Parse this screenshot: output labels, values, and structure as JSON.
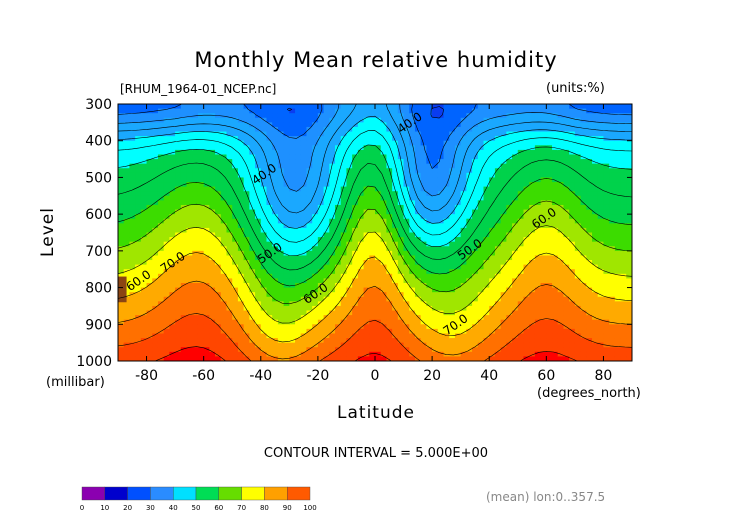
{
  "chart_data": {
    "type": "heatmap",
    "title": "Monthly Mean relative humidity",
    "subtitle_left": "[RHUM_1964-01_NCEP.nc]",
    "subtitle_right": "(units:%)",
    "xlabel": "Latitude",
    "xunits": "(degrees_north)",
    "ylabel": "Level",
    "yunits": "(millibar)",
    "xlim": [
      -90,
      90
    ],
    "ylim": [
      1000,
      300
    ],
    "x_ticks": [
      -80,
      -60,
      -40,
      -20,
      0,
      20,
      40,
      60,
      80
    ],
    "y_ticks": [
      300,
      400,
      500,
      600,
      700,
      800,
      900,
      1000
    ],
    "contour_interval": "CONTOUR INTERVAL = 5.000E+00",
    "footer": "(mean) lon:0..357.5",
    "contour_labels": [
      {
        "text": "40.0",
        "lat": -38,
        "level": 500
      },
      {
        "text": "40.0",
        "lat": 13,
        "level": 360
      },
      {
        "text": "50.0",
        "lat": -36,
        "level": 715
      },
      {
        "text": "50.0",
        "lat": 34,
        "level": 705
      },
      {
        "text": "60.0",
        "lat": -20,
        "level": 825
      },
      {
        "text": "60.0",
        "lat": 60,
        "level": 620
      },
      {
        "text": "60.0",
        "lat": -82,
        "level": 790
      },
      {
        "text": "70.0",
        "lat": -70,
        "level": 740
      },
      {
        "text": "70.0",
        "lat": 29,
        "level": 910
      }
    ],
    "colorbar": {
      "ticks": [
        "0",
        "10",
        "20",
        "30",
        "40",
        "50",
        "60",
        "70",
        "80",
        "90",
        "100"
      ],
      "colors": [
        "#8b00b0",
        "#0000cd",
        "#0050ff",
        "#2a8cff",
        "#00e0ff",
        "#00dd55",
        "#66dd00",
        "#ffff00",
        "#ffa000",
        "#ff5a00",
        "#ff0000"
      ],
      "bins": [
        0,
        10,
        20,
        30,
        40,
        50,
        60,
        70,
        80,
        90,
        100
      ]
    },
    "fill_colors": {
      "lt15": "#0000cd",
      "15_20": "#0a3cf0",
      "20_25": "#0064ff",
      "25_30": "#1e90ff",
      "30_40": "#1aa8ff",
      "40_50": "#00ffff",
      "50_60": "#00d24b",
      "60_65": "#3cdc00",
      "65_70": "#a0e600",
      "70_75": "#ffff00",
      "75_80": "#ffaa00",
      "80_85": "#ff7000",
      "85_90": "#ff4600",
      "90_100": "#ff0000",
      "dry_edge": "#8b4513"
    }
  }
}
